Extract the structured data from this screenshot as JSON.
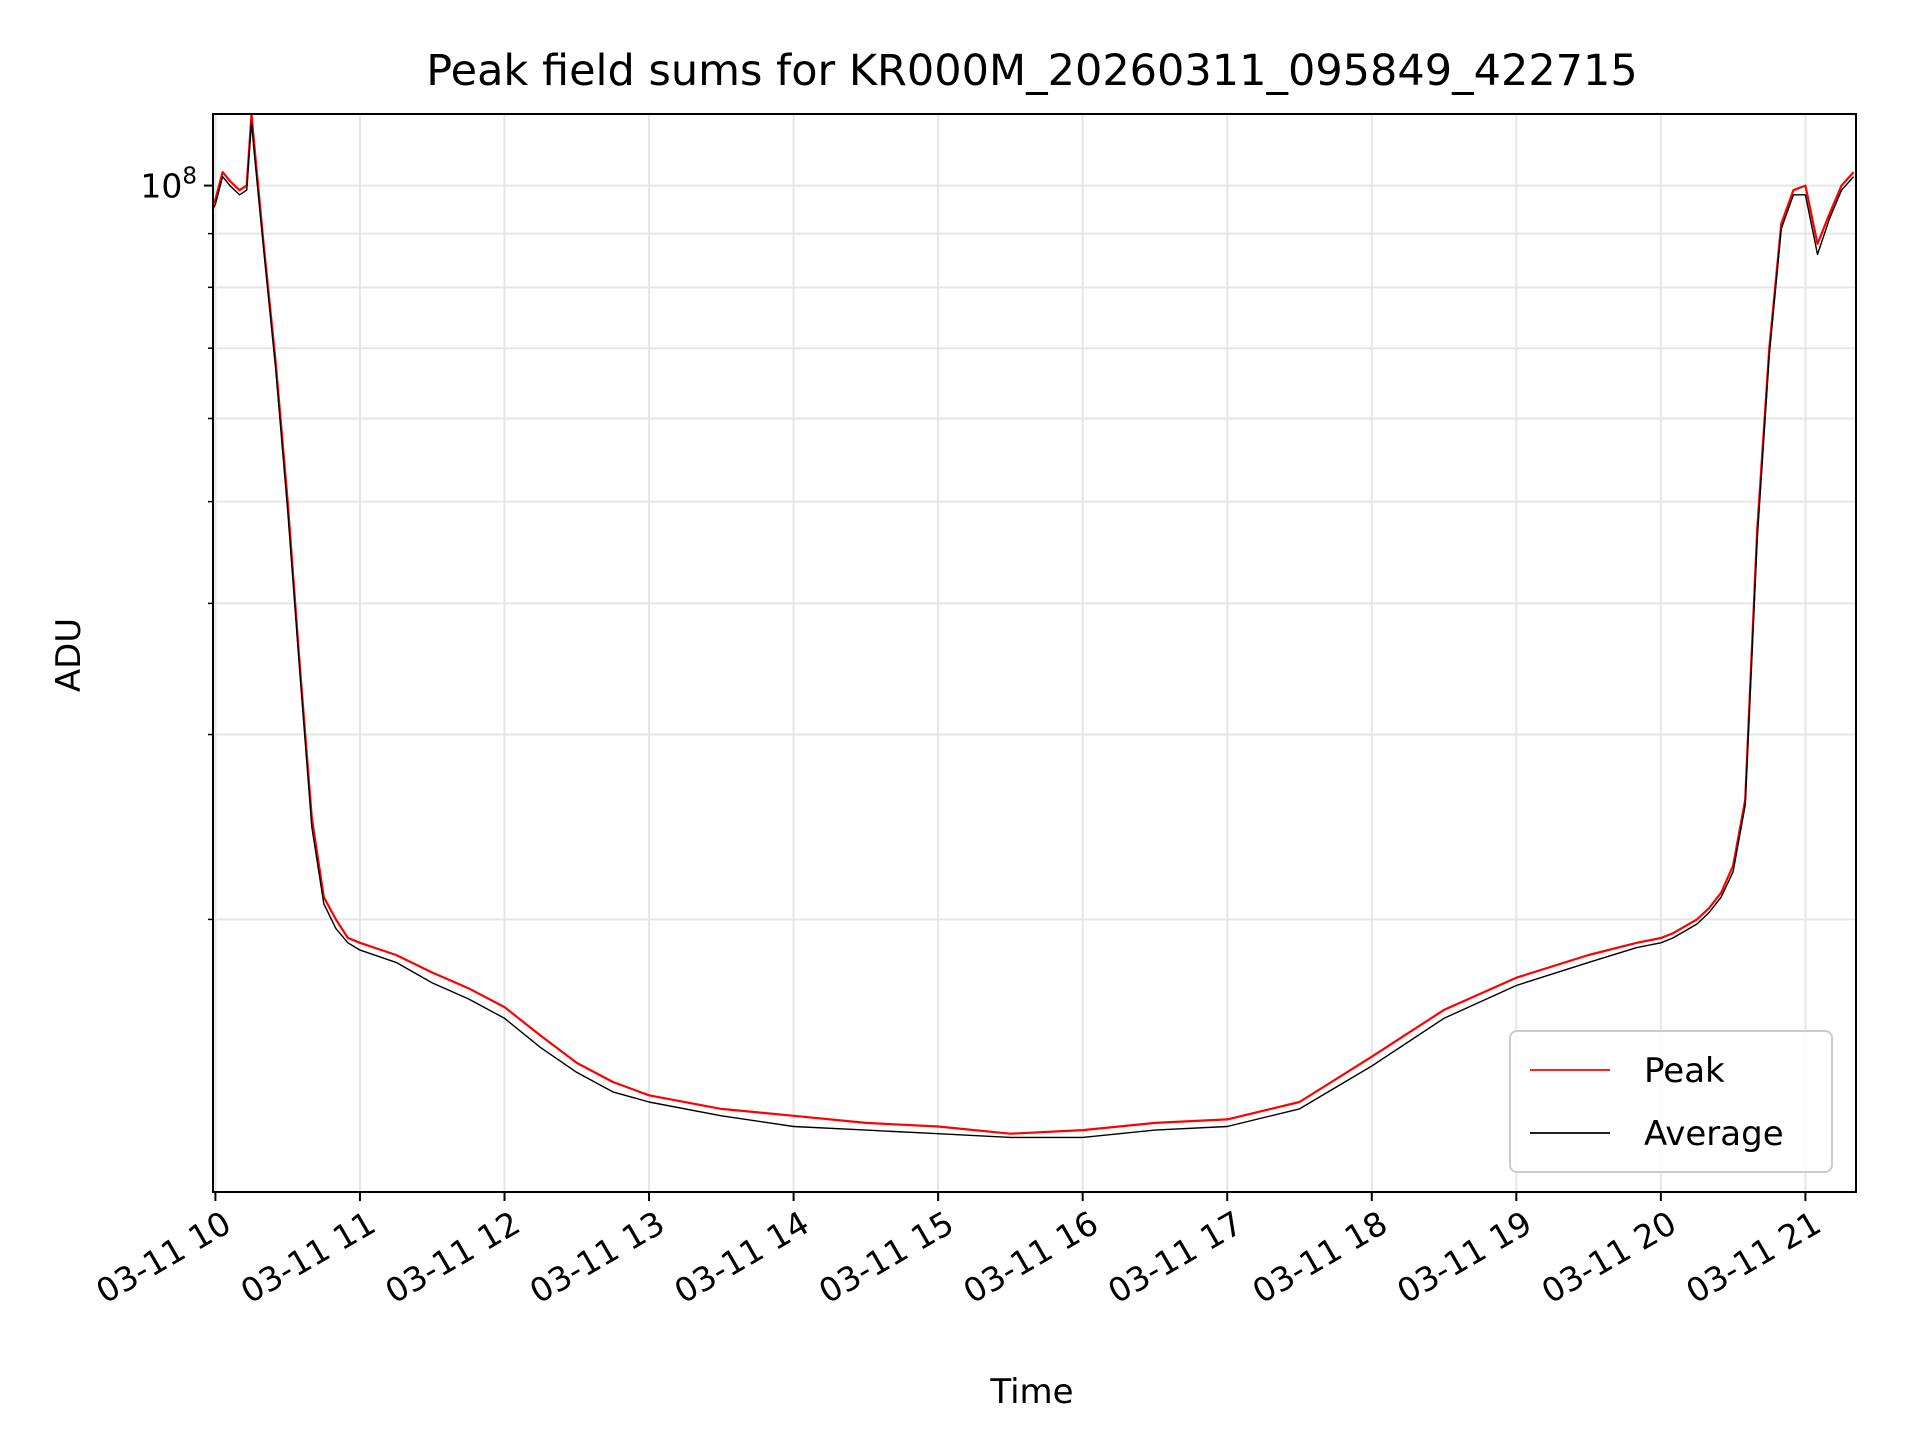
{
  "chart_data": {
    "type": "line",
    "title": "Peak field sums for KR000M_20260311_095849_422715",
    "xlabel": "Time",
    "ylabel": "ADU",
    "yscale": "log",
    "grid": true,
    "legend_position": "lower-right",
    "x_tick_labels": [
      "03-11 10",
      "03-11 11",
      "03-11 12",
      "03-11 13",
      "03-11 14",
      "03-11 15",
      "03-11 16",
      "03-11 17",
      "03-11 18",
      "03-11 19",
      "03-11 20",
      "03-11 21"
    ],
    "y_major_tick": {
      "value": 100000000,
      "base": "10",
      "exponent": "8"
    },
    "xlim": [
      "2026-03-11 09:59",
      "2026-03-11 21:21"
    ],
    "ylim": [
      11000000,
      117000000
    ],
    "series": [
      {
        "name": "Peak",
        "color": "#ff0000",
        "x": [
          "2026-03-11 09:59",
          "2026-03-11 10:00",
          "2026-03-11 10:03",
          "2026-03-11 10:06",
          "2026-03-11 10:10",
          "2026-03-11 10:13",
          "2026-03-11 10:15",
          "2026-03-11 10:16",
          "2026-03-11 10:20",
          "2026-03-11 10:25",
          "2026-03-11 10:30",
          "2026-03-11 10:35",
          "2026-03-11 10:40",
          "2026-03-11 10:45",
          "2026-03-11 10:50",
          "2026-03-11 10:55",
          "2026-03-11 11:00",
          "2026-03-11 11:15",
          "2026-03-11 11:30",
          "2026-03-11 11:45",
          "2026-03-11 12:00",
          "2026-03-11 12:15",
          "2026-03-11 12:30",
          "2026-03-11 12:45",
          "2026-03-11 13:00",
          "2026-03-11 13:30",
          "2026-03-11 14:00",
          "2026-03-11 14:30",
          "2026-03-11 15:00",
          "2026-03-11 15:30",
          "2026-03-11 16:00",
          "2026-03-11 16:30",
          "2026-03-11 17:00",
          "2026-03-11 17:30",
          "2026-03-11 18:00",
          "2026-03-11 18:30",
          "2026-03-11 19:00",
          "2026-03-11 19:30",
          "2026-03-11 19:50",
          "2026-03-11 20:00",
          "2026-03-11 20:05",
          "2026-03-11 20:10",
          "2026-03-11 20:15",
          "2026-03-11 20:20",
          "2026-03-11 20:25",
          "2026-03-11 20:30",
          "2026-03-11 20:35",
          "2026-03-11 20:37",
          "2026-03-11 20:40",
          "2026-03-11 20:45",
          "2026-03-11 20:50",
          "2026-03-11 20:55",
          "2026-03-11 21:00",
          "2026-03-11 21:05",
          "2026-03-11 21:10",
          "2026-03-11 21:15",
          "2026-03-11 21:20"
        ],
        "y": [
          96000000,
          97000000,
          103000000,
          101000000,
          99000000,
          100000000,
          117000000,
          110000000,
          88000000,
          68000000,
          50000000,
          35000000,
          25000000,
          21000000,
          20000000,
          19200000,
          19000000,
          18500000,
          17800000,
          17200000,
          16500000,
          15500000,
          14600000,
          14000000,
          13600000,
          13200000,
          13000000,
          12800000,
          12700000,
          12500000,
          12600000,
          12800000,
          12900000,
          13400000,
          14800000,
          16400000,
          17600000,
          18500000,
          19000000,
          19200000,
          19400000,
          19700000,
          20000000,
          20500000,
          21200000,
          22500000,
          26000000,
          33000000,
          47000000,
          70000000,
          92000000,
          99000000,
          100000000,
          88000000,
          94000000,
          100000000,
          103000000
        ]
      },
      {
        "name": "Average",
        "color": "#000000",
        "x": [
          "2026-03-11 09:59",
          "2026-03-11 10:00",
          "2026-03-11 10:03",
          "2026-03-11 10:06",
          "2026-03-11 10:10",
          "2026-03-11 10:13",
          "2026-03-11 10:15",
          "2026-03-11 10:16",
          "2026-03-11 10:20",
          "2026-03-11 10:25",
          "2026-03-11 10:30",
          "2026-03-11 10:35",
          "2026-03-11 10:40",
          "2026-03-11 10:45",
          "2026-03-11 10:50",
          "2026-03-11 10:55",
          "2026-03-11 11:00",
          "2026-03-11 11:15",
          "2026-03-11 11:30",
          "2026-03-11 11:45",
          "2026-03-11 12:00",
          "2026-03-11 12:15",
          "2026-03-11 12:30",
          "2026-03-11 12:45",
          "2026-03-11 13:00",
          "2026-03-11 13:30",
          "2026-03-11 14:00",
          "2026-03-11 14:30",
          "2026-03-11 15:00",
          "2026-03-11 15:30",
          "2026-03-11 16:00",
          "2026-03-11 16:30",
          "2026-03-11 17:00",
          "2026-03-11 17:30",
          "2026-03-11 18:00",
          "2026-03-11 18:30",
          "2026-03-11 19:00",
          "2026-03-11 19:30",
          "2026-03-11 19:50",
          "2026-03-11 20:00",
          "2026-03-11 20:05",
          "2026-03-11 20:10",
          "2026-03-11 20:15",
          "2026-03-11 20:20",
          "2026-03-11 20:25",
          "2026-03-11 20:30",
          "2026-03-11 20:35",
          "2026-03-11 20:37",
          "2026-03-11 20:40",
          "2026-03-11 20:45",
          "2026-03-11 20:50",
          "2026-03-11 20:55",
          "2026-03-11 21:00",
          "2026-03-11 21:05",
          "2026-03-11 21:10",
          "2026-03-11 21:15",
          "2026-03-11 21:20"
        ],
        "y": [
          95000000,
          96000000,
          102000000,
          100000000,
          98000000,
          99000000,
          115000000,
          108000000,
          87000000,
          67000000,
          49000000,
          34500000,
          24500000,
          20700000,
          19600000,
          19000000,
          18700000,
          18200000,
          17400000,
          16800000,
          16100000,
          15100000,
          14300000,
          13700000,
          13400000,
          13000000,
          12700000,
          12600000,
          12500000,
          12400000,
          12400000,
          12600000,
          12700000,
          13200000,
          14500000,
          16100000,
          17300000,
          18200000,
          18800000,
          19000000,
          19200000,
          19500000,
          19800000,
          20300000,
          21000000,
          22200000,
          25700000,
          32500000,
          46000000,
          69000000,
          91000000,
          98000000,
          98000000,
          86000000,
          93000000,
          99000000,
          102000000
        ]
      }
    ]
  }
}
